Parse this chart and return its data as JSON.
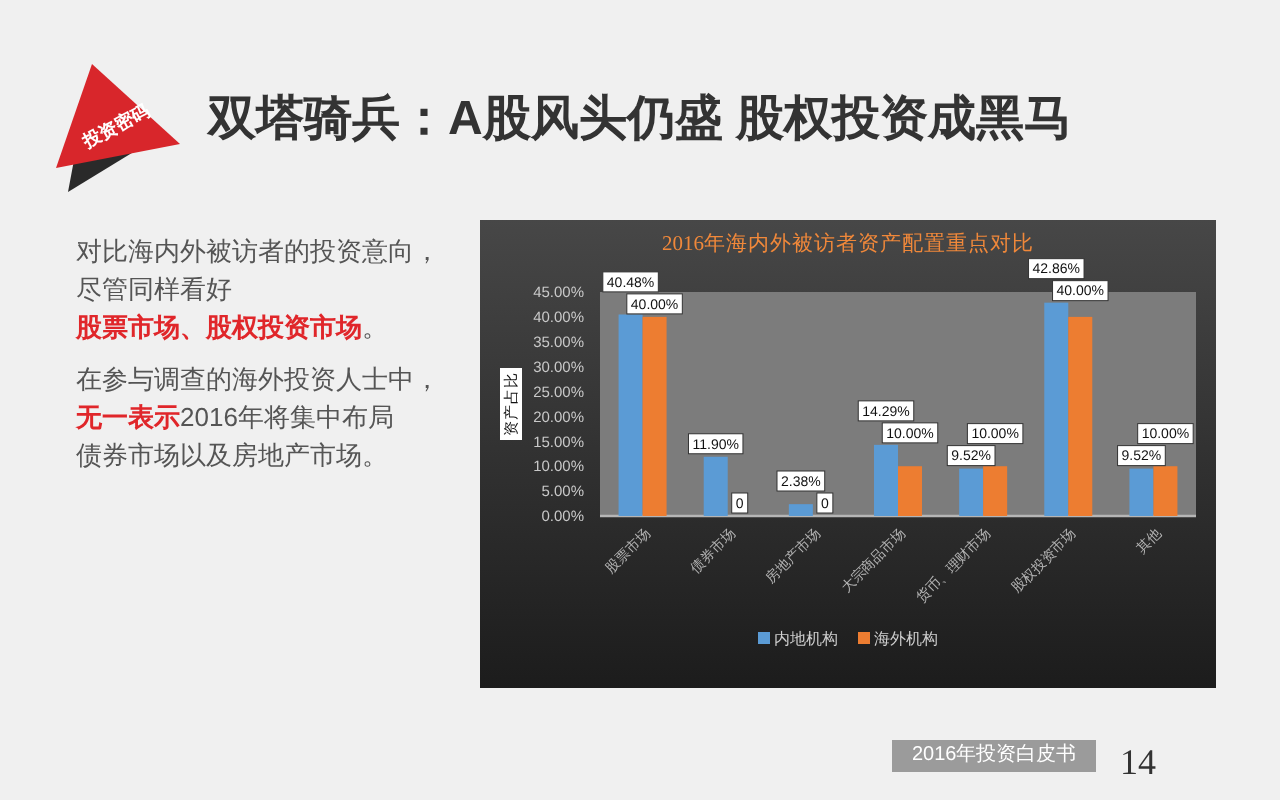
{
  "chart_data": {
    "type": "bar",
    "title": "双塔骑兵：A股风头仍盛 股权投资成黑马",
    "subtitle": "2016年海内外被访者资产配置重点对比",
    "ylabel": "资产占比",
    "categories": [
      "股票市场",
      "债券市场",
      "房地产市场",
      "大宗商品市场",
      "货币、理财市场",
      "股权投资市场",
      "其他"
    ],
    "series": [
      {
        "name": "内地机构",
        "color": "#5b9bd5",
        "values": [
          40.48,
          11.9,
          2.38,
          14.29,
          9.52,
          42.86,
          9.52
        ],
        "value_labels": [
          "40.48%",
          "11.90%",
          "2.38%",
          "14.29%",
          "9.52%",
          "42.86%",
          "9.52%"
        ]
      },
      {
        "name": "海外机构",
        "color": "#ed7d31",
        "values": [
          40.0,
          0,
          0,
          10.0,
          10.0,
          40.0,
          10.0
        ],
        "value_labels": [
          "40.00%",
          "0",
          "0",
          "10.00%",
          "10.00%",
          "40.00%",
          "10.00%"
        ]
      }
    ],
    "ylim": [
      0,
      45
    ],
    "yticks": [
      {
        "value": 0,
        "label": "0.00%"
      },
      {
        "value": 5,
        "label": "5.00%"
      },
      {
        "value": 10,
        "label": "10.00%"
      },
      {
        "value": 15,
        "label": "15.00%"
      },
      {
        "value": 20,
        "label": "20.00%"
      },
      {
        "value": 25,
        "label": "25.00%"
      },
      {
        "value": 30,
        "label": "30.00%"
      },
      {
        "value": 35,
        "label": "35.00%"
      },
      {
        "value": 40,
        "label": "40.00%"
      },
      {
        "value": 45,
        "label": "45.00%"
      }
    ],
    "grid": false,
    "legend": "bottom",
    "annotations": [
      "投资密码",
      "对比海内外被访者的投资意向，",
      "尽管同样看好",
      "股票市场、股权投资市场",
      "。",
      "在参与调查的海外投资人士中，",
      "无一表示",
      "2016年将集中布局",
      "债券市场以及房地产市场。",
      "2016年投资白皮书",
      "14"
    ]
  }
}
